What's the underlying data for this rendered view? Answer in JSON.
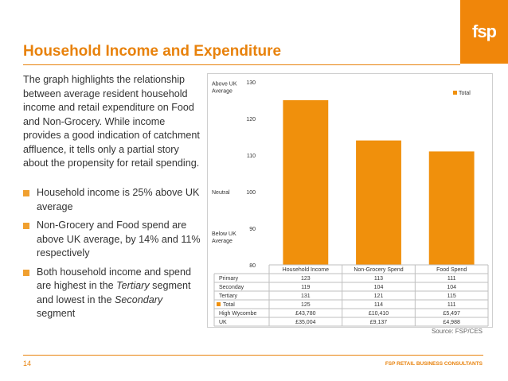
{
  "logo": {
    "text": "fsp"
  },
  "title": "Household Income and Expenditure",
  "intro": "The graph highlights the relationship between average resident household income and retail expenditure on Food and Non-Grocery.  While income provides a good indication of catchment affluence, it tells only a partial story about the propensity for retail spending.",
  "bullets": [
    {
      "text": "Household income is 25% above UK average"
    },
    {
      "text": "Non-Grocery and Food spend are above UK average, by 14% and 11% respectively"
    },
    {
      "before": "Both household income and spend are highest in the ",
      "italic1": "Tertiary",
      "middle": " segment and lowest in the ",
      "italic2": "Secondary",
      "after": " segment"
    }
  ],
  "chart_data": {
    "type": "bar",
    "categories": [
      "Household Income",
      "Non-Grocery Spend",
      "Food Spend"
    ],
    "series": [
      {
        "name": "Total",
        "values": [
          125,
          114,
          111
        ]
      }
    ],
    "ylim": [
      80,
      130
    ],
    "yticks": [
      80,
      90,
      100,
      110,
      120,
      130
    ],
    "annotations": [
      "Above UK Average",
      "Neutral",
      "Below UK Average"
    ],
    "legend": "top-right",
    "grid": false,
    "bar_color": "#F0900C",
    "table": [
      {
        "label": "Primary",
        "values": [
          "123",
          "113",
          "111"
        ]
      },
      {
        "label": "Seconday",
        "values": [
          "119",
          "104",
          "104"
        ]
      },
      {
        "label": "Tertiary",
        "values": [
          "131",
          "121",
          "115"
        ]
      },
      {
        "label": "Total",
        "values": [
          "125",
          "114",
          "111"
        ],
        "legend_key": true
      },
      {
        "label": "High Wycombe",
        "values": [
          "£43,780",
          "£10,410",
          "£5,497"
        ]
      },
      {
        "label": "UK",
        "values": [
          "£35,004",
          "£9,137",
          "£4,988"
        ]
      }
    ]
  },
  "source": "Source: FSP/CES",
  "page_number": "14",
  "brand": "FSP RETAIL BUSINESS CONSULTANTS",
  "colors": {
    "accent": "#E8820C"
  }
}
